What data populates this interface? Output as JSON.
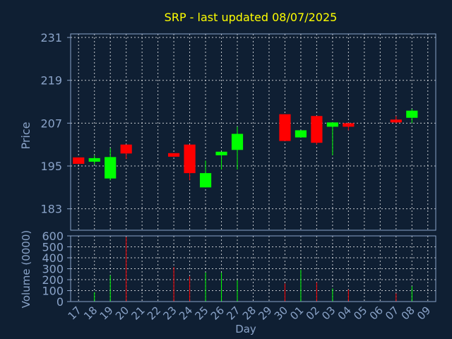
{
  "chart_data": {
    "type": "candlestick",
    "title": "SRP - last updated 08/07/2025",
    "xlabel": "Day",
    "colors": {
      "background": "#0f1f33",
      "title": "#ffff00",
      "axis_text": "#8aa3c8",
      "up": "#00ff00",
      "down": "#ff0000",
      "grid": "#ffffff"
    },
    "price_panel": {
      "ylabel": "Price",
      "ylim": [
        177,
        232
      ],
      "yticks": [
        183,
        195,
        207,
        219,
        231
      ],
      "grid": true
    },
    "volume_panel": {
      "ylabel": "Volume (0000)",
      "ylim": [
        0,
        600
      ],
      "yticks": [
        0,
        100,
        200,
        300,
        400,
        500,
        600
      ],
      "grid": true
    },
    "categories": [
      "17",
      "18",
      "19",
      "20",
      "21",
      "22",
      "23",
      "24",
      "25",
      "26",
      "27",
      "28",
      "29",
      "30",
      "01",
      "02",
      "03",
      "04",
      "05",
      "06",
      "07",
      "08",
      "09"
    ],
    "candles": [
      {
        "day": "17",
        "open": 197.4,
        "high": 197.4,
        "low": 195.6,
        "close": 195.6
      },
      {
        "day": "18",
        "open": 196.2,
        "high": 198.0,
        "low": 195.4,
        "close": 197.2
      },
      {
        "day": "19",
        "open": 191.5,
        "high": 200.0,
        "low": 191.0,
        "close": 197.5
      },
      {
        "day": "20",
        "open": 201.0,
        "high": 201.0,
        "low": 197.0,
        "close": 198.5
      },
      {
        "day": "23",
        "open": 198.6,
        "high": 198.6,
        "low": 197.6,
        "close": 197.6
      },
      {
        "day": "24",
        "open": 201.0,
        "high": 201.0,
        "low": 191.0,
        "close": 193.0
      },
      {
        "day": "25",
        "open": 189.0,
        "high": 196.5,
        "low": 189.0,
        "close": 193.0
      },
      {
        "day": "26",
        "open": 198.0,
        "high": 199.0,
        "low": 194.0,
        "close": 199.0
      },
      {
        "day": "27",
        "open": 199.5,
        "high": 206.0,
        "low": 194.0,
        "close": 204.0
      },
      {
        "day": "30",
        "open": 209.5,
        "high": 209.5,
        "low": 202.0,
        "close": 202.0
      },
      {
        "day": "01",
        "open": 203.0,
        "high": 205.0,
        "low": 203.0,
        "close": 205.0
      },
      {
        "day": "02",
        "open": 209.0,
        "high": 209.0,
        "low": 201.0,
        "close": 201.5
      },
      {
        "day": "03",
        "open": 206.0,
        "high": 207.2,
        "low": 198.0,
        "close": 207.2
      },
      {
        "day": "04",
        "open": 207.0,
        "high": 207.0,
        "low": 205.0,
        "close": 206.0
      },
      {
        "day": "07",
        "open": 208.0,
        "high": 209.0,
        "low": 207.0,
        "close": 207.2
      },
      {
        "day": "08",
        "open": 208.5,
        "high": 211.0,
        "low": 207.0,
        "close": 210.5
      }
    ],
    "volume": [
      {
        "day": "18",
        "value": 85,
        "direction": "up"
      },
      {
        "day": "19",
        "value": 240,
        "direction": "up"
      },
      {
        "day": "20",
        "value": 590,
        "direction": "down"
      },
      {
        "day": "23",
        "value": 315,
        "direction": "down"
      },
      {
        "day": "24",
        "value": 230,
        "direction": "down"
      },
      {
        "day": "25",
        "value": 265,
        "direction": "up"
      },
      {
        "day": "26",
        "value": 265,
        "direction": "up"
      },
      {
        "day": "27",
        "value": 195,
        "direction": "up"
      },
      {
        "day": "30",
        "value": 165,
        "direction": "down"
      },
      {
        "day": "01",
        "value": 290,
        "direction": "up"
      },
      {
        "day": "02",
        "value": 175,
        "direction": "down"
      },
      {
        "day": "03",
        "value": 120,
        "direction": "up"
      },
      {
        "day": "04",
        "value": 110,
        "direction": "down"
      },
      {
        "day": "07",
        "value": 75,
        "direction": "down"
      },
      {
        "day": "08",
        "value": 140,
        "direction": "up"
      }
    ]
  }
}
